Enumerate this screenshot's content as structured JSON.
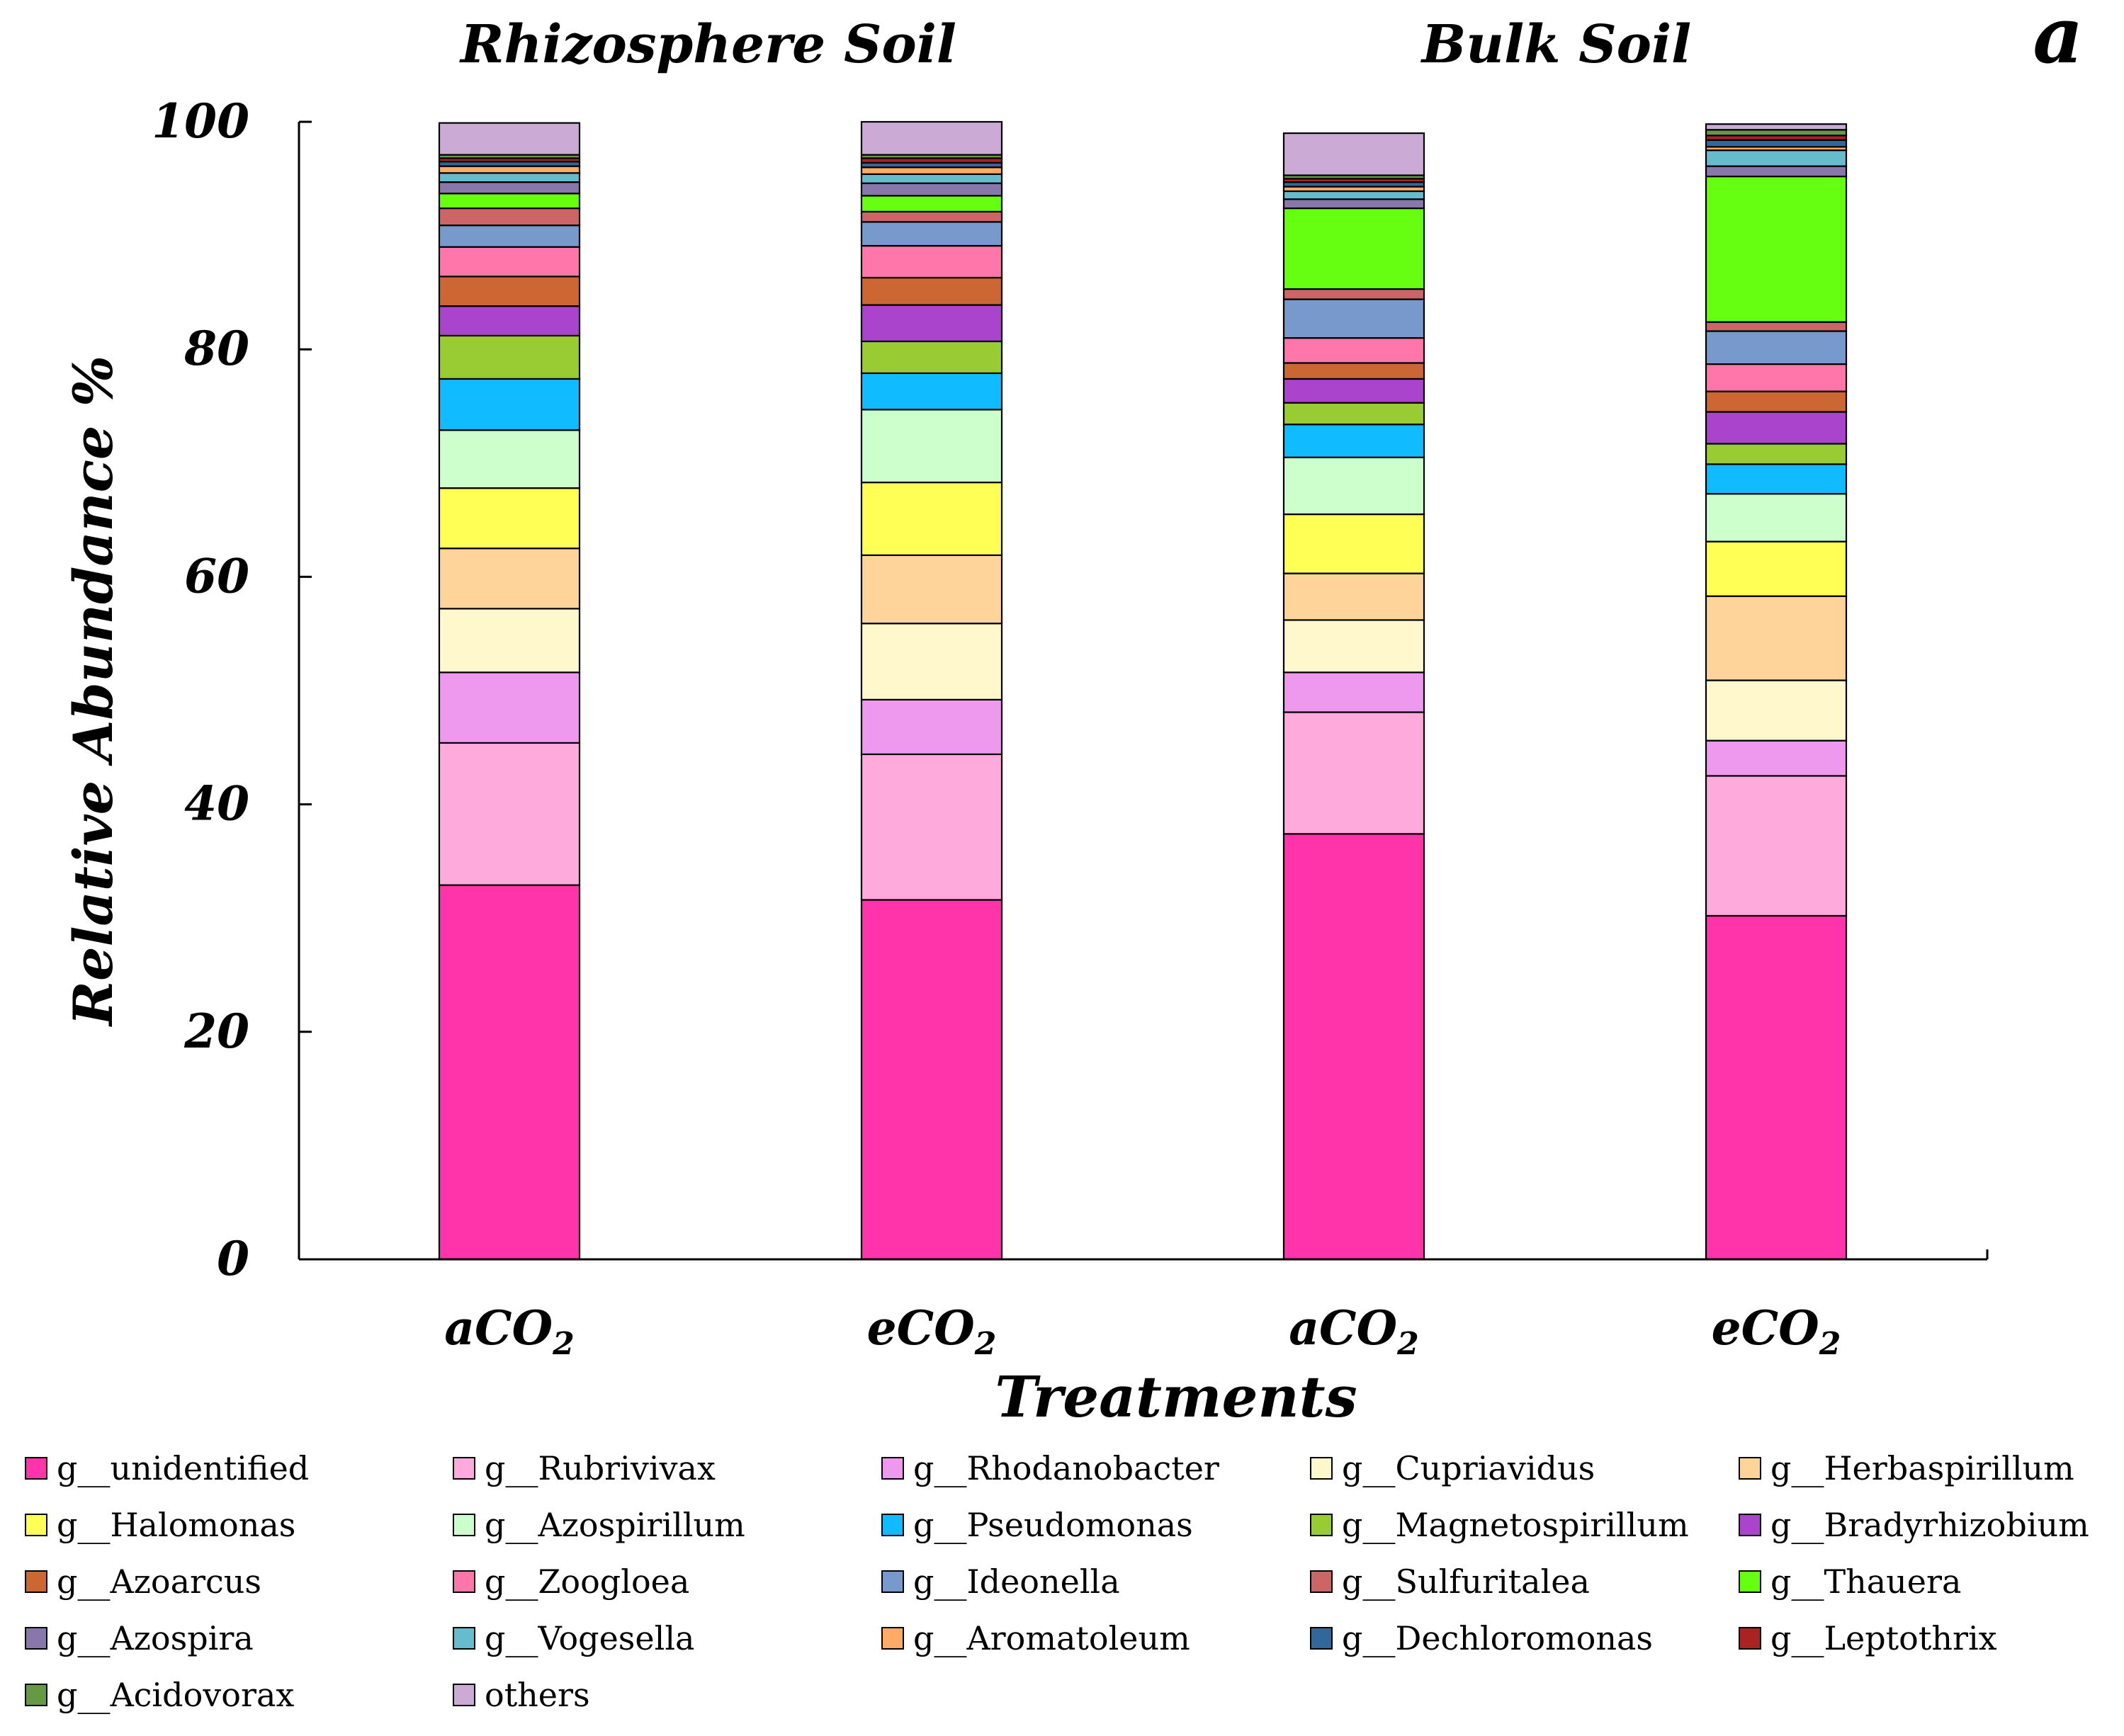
{
  "panel_label": "a",
  "chart_data": {
    "type": "stacked-bar",
    "group_titles": [
      "Rhizosphere  Soil",
      "Bulk   Soil"
    ],
    "ylabel": "Relative Abundance %",
    "xlabel": "Treatments",
    "ylim": [
      0,
      100
    ],
    "yticks": [
      "0",
      "20",
      "40",
      "60",
      "80",
      "100"
    ],
    "ytick_values": [
      0,
      20,
      40,
      60,
      80,
      100
    ],
    "categories": [
      {
        "main": "aCO",
        "sub": "2"
      },
      {
        "main": "eCO",
        "sub": "2"
      },
      {
        "main": "aCO",
        "sub": "2"
      },
      {
        "main": "eCO",
        "sub": "2"
      }
    ],
    "series": [
      {
        "name": "g__unidentified",
        "color": "#ff33aa",
        "values": [
          32.9,
          31.6,
          37.4,
          30.2
        ]
      },
      {
        "name": "g__Rubrivivax",
        "color": "#ffaadd",
        "values": [
          12.5,
          12.8,
          10.7,
          12.3
        ]
      },
      {
        "name": "g__Rhodanobacter",
        "color": "#ee99ee",
        "values": [
          6.2,
          4.8,
          3.5,
          3.1
        ]
      },
      {
        "name": "g__Cupriavidus",
        "color": "#fff8cc",
        "values": [
          5.6,
          6.7,
          4.6,
          5.3
        ]
      },
      {
        "name": "g__Herbaspirillum",
        "color": "#ffd49a",
        "values": [
          5.3,
          6.0,
          4.1,
          7.4
        ]
      },
      {
        "name": "g__Halomonas",
        "color": "#ffff55",
        "values": [
          5.3,
          6.4,
          5.2,
          4.8
        ]
      },
      {
        "name": "g__Azospirillum",
        "color": "#ccffcc",
        "values": [
          5.1,
          6.4,
          5.0,
          4.2
        ]
      },
      {
        "name": "g__Pseudomonas",
        "color": "#11bbff",
        "values": [
          4.5,
          3.2,
          2.9,
          2.6
        ]
      },
      {
        "name": "g__Magnetospirillum",
        "color": "#99cc33",
        "values": [
          3.8,
          2.8,
          1.9,
          1.8
        ]
      },
      {
        "name": "g__Bradyrhizobium",
        "color": "#aa44cc",
        "values": [
          2.6,
          3.2,
          2.1,
          2.8
        ]
      },
      {
        "name": "g__Azoarcus",
        "color": "#cc6633",
        "values": [
          2.6,
          2.4,
          1.4,
          1.8
        ]
      },
      {
        "name": "g__Zoogloea",
        "color": "#ff77aa",
        "values": [
          2.6,
          2.8,
          2.2,
          2.4
        ]
      },
      {
        "name": "g__Ideonella",
        "color": "#7799cc",
        "values": [
          1.9,
          2.1,
          3.4,
          2.9
        ]
      },
      {
        "name": "g__Sulfuritalea",
        "color": "#cc6666",
        "values": [
          1.5,
          0.9,
          0.9,
          0.8
        ]
      },
      {
        "name": "g__Thauera",
        "color": "#66ff11",
        "values": [
          1.3,
          1.4,
          7.1,
          12.8
        ]
      },
      {
        "name": "g__Azospira",
        "color": "#8877aa",
        "values": [
          1.0,
          1.1,
          0.8,
          0.9
        ]
      },
      {
        "name": "g__Vogesella",
        "color": "#66bbcc",
        "values": [
          0.8,
          0.8,
          0.7,
          1.4
        ]
      },
      {
        "name": "g__Aromatoleum",
        "color": "#ffaa66",
        "values": [
          0.6,
          0.6,
          0.4,
          0.3
        ]
      },
      {
        "name": "g__Dechloromonas",
        "color": "#336699",
        "values": [
          0.4,
          0.4,
          0.4,
          0.6
        ]
      },
      {
        "name": "g__Leptothrix",
        "color": "#aa2222",
        "values": [
          0.3,
          0.4,
          0.3,
          0.4
        ]
      },
      {
        "name": "g__Acidovorax",
        "color": "#669944",
        "values": [
          0.3,
          0.3,
          0.3,
          0.5
        ]
      },
      {
        "name": "others",
        "color": "#ccaad6",
        "values": [
          2.8,
          2.9,
          3.7,
          0.5
        ]
      }
    ]
  }
}
